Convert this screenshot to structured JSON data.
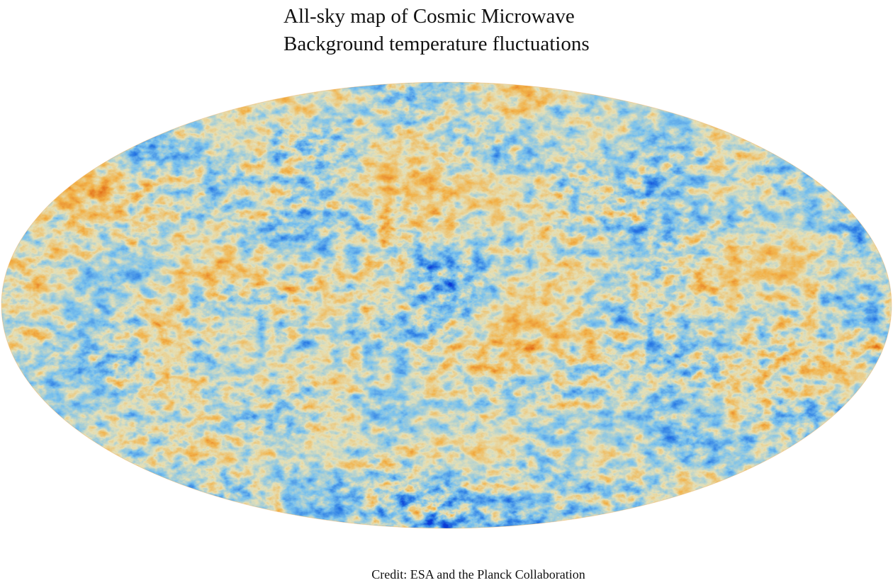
{
  "title": {
    "line1": "All-sky map of Cosmic Microwave",
    "line2": "Background temperature fluctuations"
  },
  "credit": "Credit: ESA and the Planck Collaboration",
  "map": {
    "projection": "Mollweide",
    "colors": {
      "cold_deep": "#0a3ad6",
      "cold": "#2f7fe6",
      "cool": "#7cc2ee",
      "neutral": "#e6e2b8",
      "warm": "#f2b24a",
      "hot": "#e46e16",
      "hot_deep": "#c9420c"
    }
  }
}
